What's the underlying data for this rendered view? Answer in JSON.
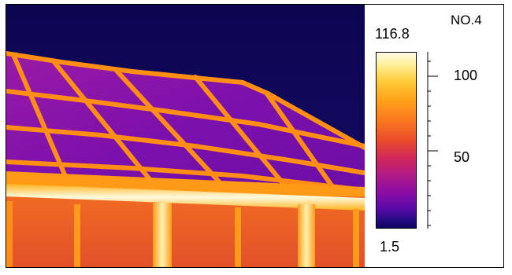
{
  "scale": {
    "id_label": "NO.4",
    "max_value": "116.8",
    "min_value": "1.5",
    "tick_labels": [
      "100",
      "50"
    ]
  },
  "colors": {
    "sky": "#0f0757",
    "panel": "#8e12a8",
    "frame_orange": "#ff8a10",
    "hot_yellow": "#fff5a0"
  }
}
